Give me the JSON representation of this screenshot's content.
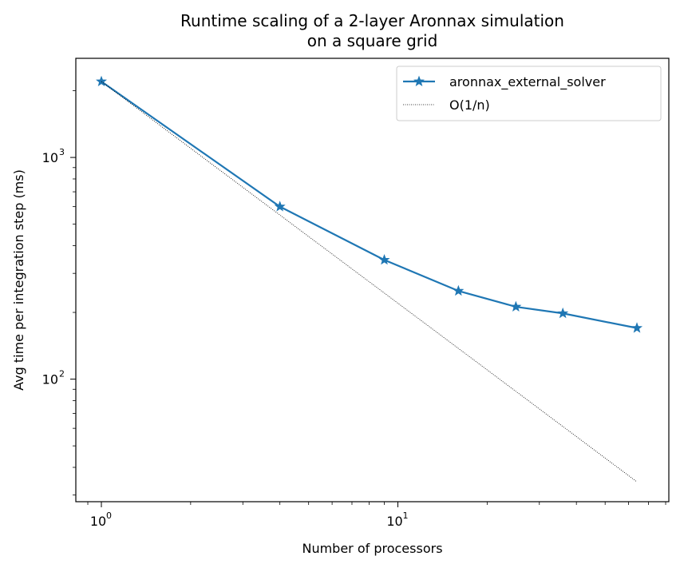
{
  "chart_data": {
    "type": "line",
    "title": [
      "Runtime scaling of a 2-layer Aronnax simulation",
      "on a square grid"
    ],
    "xlabel": "Number of processors",
    "ylabel": "Avg time per integration step (ms)",
    "xscale": "log",
    "yscale": "log",
    "xlim": [
      0.82,
      82
    ],
    "ylim": [
      28,
      2800
    ],
    "xticks": [
      {
        "base": "10",
        "exp": "0",
        "value": 1
      },
      {
        "base": "10",
        "exp": "1",
        "value": 10
      }
    ],
    "yticks": [
      {
        "base": "10",
        "exp": "2",
        "value": 100
      },
      {
        "base": "10",
        "exp": "3",
        "value": 1000
      }
    ],
    "grid": false,
    "legend": "top-right",
    "series": [
      {
        "name": "aronnax_external_solver",
        "x": [
          1,
          4,
          9,
          16,
          25,
          36,
          64
        ],
        "y": [
          2200,
          600,
          345,
          250,
          212,
          198,
          170
        ],
        "color": "#1f77b4",
        "style": "solid",
        "marker": "star"
      },
      {
        "name": "O(1/n)",
        "x": [
          1,
          64
        ],
        "y": [
          2200,
          34.4
        ],
        "color": "#000000",
        "style": "dotted",
        "marker": "none"
      }
    ]
  }
}
